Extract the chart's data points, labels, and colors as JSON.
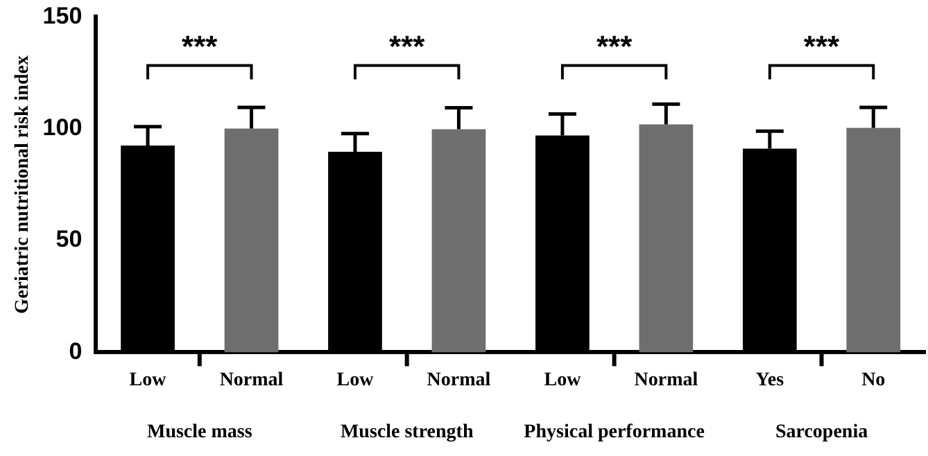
{
  "chart_data": {
    "type": "bar",
    "ylabel": "Geriatric nutritional risk index",
    "categories": [
      "Low",
      "Normal",
      "Low",
      "Normal",
      "Low",
      "Normal",
      "Yes",
      "No"
    ],
    "values": [
      92.5,
      100.1,
      89.7,
      99.8,
      97.0,
      101.9,
      91.1,
      100.4
    ],
    "colors": [
      "#000000",
      "#6e6e6e",
      "#000000",
      "#6e6e6e",
      "#000000",
      "#6e6e6e",
      "#000000",
      "#6e6e6e"
    ],
    "errors": [
      [
        92.5,
        100.9
      ],
      [
        100.1,
        109.5
      ],
      [
        89.7,
        97.8
      ],
      [
        99.8,
        109.4
      ],
      [
        97.0,
        106.6
      ],
      [
        101.9,
        111.0
      ],
      [
        91.1,
        98.9
      ],
      [
        100.4,
        109.5
      ]
    ],
    "ylim": [
      0,
      150
    ],
    "yticks": [
      0,
      50,
      100,
      150
    ],
    "grid": false,
    "legend": false,
    "annotations": [
      "***",
      "***",
      "***",
      "***",
      "Muscle mass",
      "Muscle strength",
      "Physical performance",
      "Sarcopenia"
    ]
  }
}
